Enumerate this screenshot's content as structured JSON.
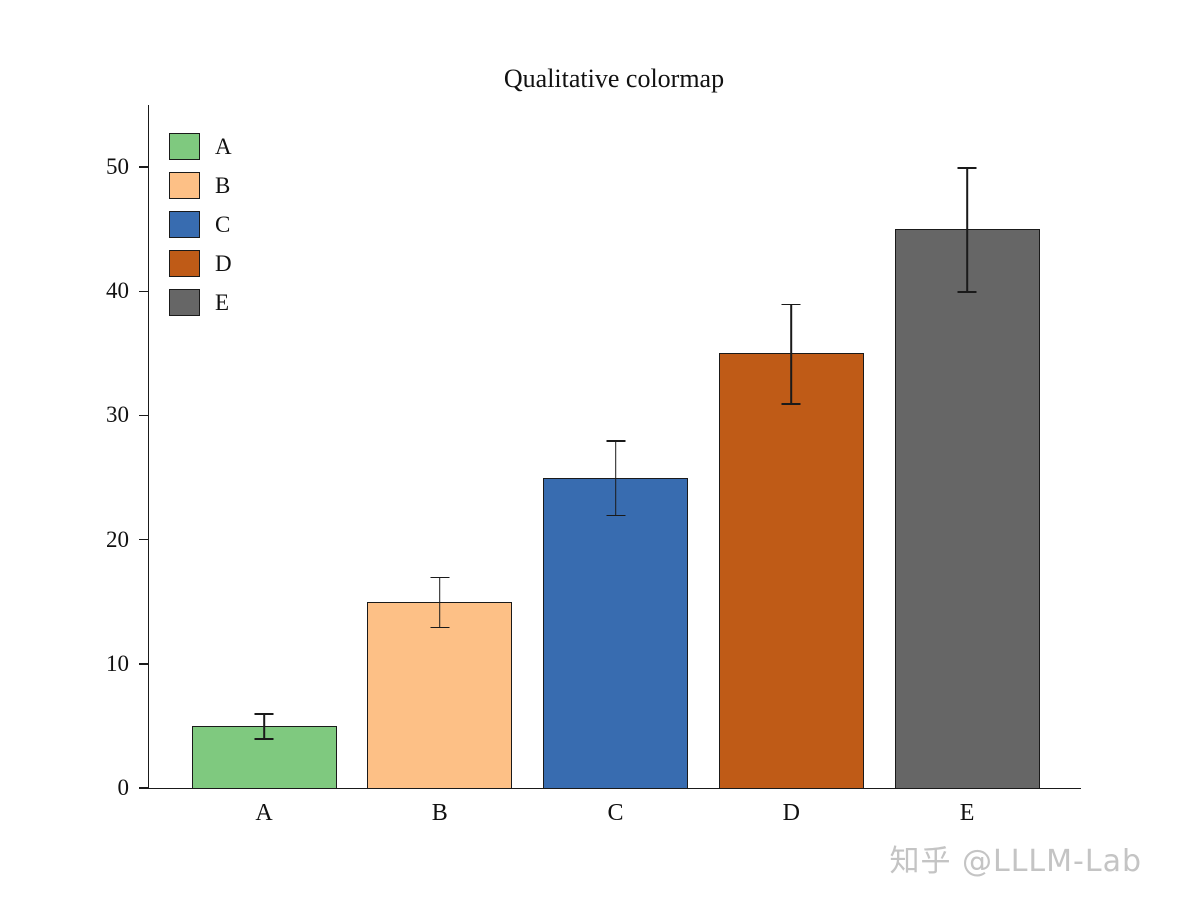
{
  "chart_data": {
    "type": "bar",
    "title": "Qualitative colormap",
    "categories": [
      "A",
      "B",
      "C",
      "D",
      "E"
    ],
    "values": [
      5,
      15,
      25,
      35,
      45
    ],
    "errors": [
      1,
      2,
      3,
      4,
      5
    ],
    "colors": [
      "#7fc97f",
      "#fdc086",
      "#386cb0",
      "#bf5b17",
      "#666666"
    ],
    "ylim": [
      0,
      55
    ],
    "yticks": [
      0,
      10,
      20,
      30,
      40,
      50
    ],
    "xlabel": "",
    "ylabel": "",
    "grid": false,
    "legend": {
      "position": "upper-left",
      "entries": [
        "A",
        "B",
        "C",
        "D",
        "E"
      ]
    }
  },
  "watermark": {
    "text": "知乎 @LLLM-Lab"
  }
}
